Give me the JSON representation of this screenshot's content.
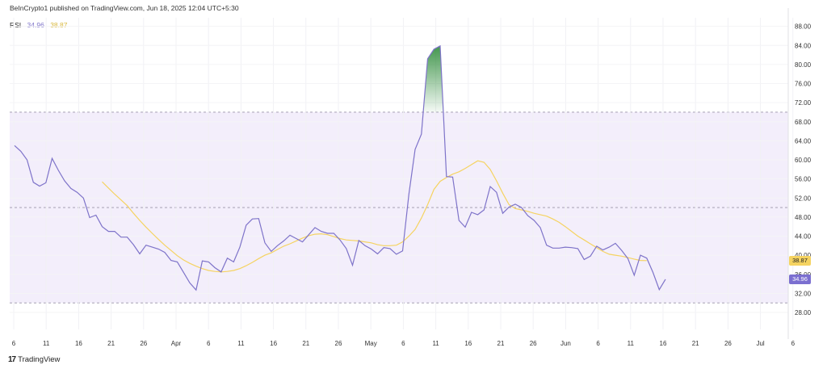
{
  "header": {
    "attribution": "BeInCrypto1 published on TradingView.com, Jun 18, 2025 12:04 UTC+5:30"
  },
  "legend": {
    "indicator": "RSI",
    "rsi_value": "34.96",
    "ma_value": "38.87"
  },
  "badges": {
    "ma": "38.87",
    "rsi": "34.96"
  },
  "footer": {
    "brand": "TradingView"
  },
  "colors": {
    "rsi_line": "#7e73c9",
    "ma_line": "#f5d361",
    "band_fill": "#f3eefb",
    "overbought_fill": "#2e8b3a",
    "ma_badge": "#f5d361",
    "rsi_badge": "#7b6fd0"
  },
  "chart_data": {
    "type": "line",
    "title": "",
    "xlabel": "",
    "ylabel": "",
    "ylim": [
      25.8,
      89.8
    ],
    "y_ticks": [
      "88.00",
      "84.00",
      "80.00",
      "76.00",
      "72.00",
      "68.00",
      "64.00",
      "60.00",
      "56.00",
      "52.00",
      "48.00",
      "44.00",
      "40.00",
      "36.00",
      "32.00",
      "28.00"
    ],
    "x_ticks": [
      "6",
      "11",
      "16",
      "21",
      "26",
      "Apr",
      "6",
      "11",
      "16",
      "21",
      "26",
      "May",
      "6",
      "11",
      "16",
      "21",
      "26",
      "Jun",
      "6",
      "11",
      "16",
      "21",
      "26",
      "Jul",
      "6"
    ],
    "band": {
      "upper": 70,
      "middle": 50,
      "lower": 30
    },
    "series": [
      {
        "values": [
          63.0,
          61.8,
          60.0,
          55.3,
          54.5,
          55.2,
          60.3,
          57.8,
          55.6,
          54.0,
          53.2,
          52.0,
          47.9,
          48.4,
          46.0,
          45.0,
          45.0,
          43.8,
          43.8,
          42.2,
          40.3,
          42.1,
          41.7,
          41.3,
          40.6,
          38.9,
          38.6,
          36.4,
          34.2,
          32.7,
          38.8,
          38.6,
          37.4,
          36.5,
          39.4,
          38.6,
          41.7,
          46.3,
          47.6,
          47.7,
          42.6,
          40.8,
          42.0,
          43.0,
          44.2,
          43.5,
          42.8,
          44.3,
          45.8,
          45.0,
          44.6,
          44.6,
          43.2,
          41.4,
          37.9,
          43.1,
          42.0,
          41.3,
          40.3,
          41.6,
          41.4,
          40.2,
          40.9,
          52.8,
          62.2,
          65.4,
          81.2,
          83.2,
          83.9,
          56.5,
          56.4,
          47.3,
          45.9,
          49.0,
          48.5,
          49.5,
          54.4,
          53.2,
          48.8,
          50.1,
          50.7,
          50.0,
          48.3,
          47.3,
          45.8,
          42.1,
          41.5,
          41.5,
          41.7,
          41.6,
          41.4,
          39.1,
          39.8,
          41.9,
          41.1,
          41.7,
          42.5,
          41.0,
          39.3,
          35.8,
          40.0,
          39.4,
          36.4,
          32.8,
          34.96
        ]
      },
      {
        "start_index": 14,
        "values": [
          55.4,
          54.1,
          52.8,
          51.6,
          50.4,
          48.8,
          47.3,
          45.9,
          44.6,
          43.3,
          42.1,
          41.0,
          39.9,
          39.0,
          38.3,
          37.7,
          37.2,
          36.8,
          36.6,
          36.5,
          36.6,
          36.8,
          37.2,
          37.8,
          38.5,
          39.3,
          40.0,
          40.5,
          41.2,
          41.9,
          42.4,
          43.0,
          43.6,
          44.1,
          44.4,
          44.5,
          44.3,
          43.9,
          43.5,
          43.2,
          43.1,
          43.0,
          42.8,
          42.6,
          42.2,
          42.0,
          42.0,
          42.1,
          42.8,
          44.0,
          45.4,
          47.8,
          50.6,
          53.8,
          55.5,
          56.3,
          57.0,
          57.5,
          58.2,
          59.0,
          59.8,
          59.5,
          58.0,
          55.6,
          53.0,
          50.6,
          49.8,
          49.5,
          49.2,
          48.8,
          48.5,
          48.2,
          47.6,
          46.9,
          46.0,
          45.0,
          44.0,
          43.2,
          42.4,
          41.6,
          40.8,
          40.2,
          40.0,
          39.8,
          39.5,
          39.2,
          38.9,
          38.87
        ]
      }
    ]
  }
}
